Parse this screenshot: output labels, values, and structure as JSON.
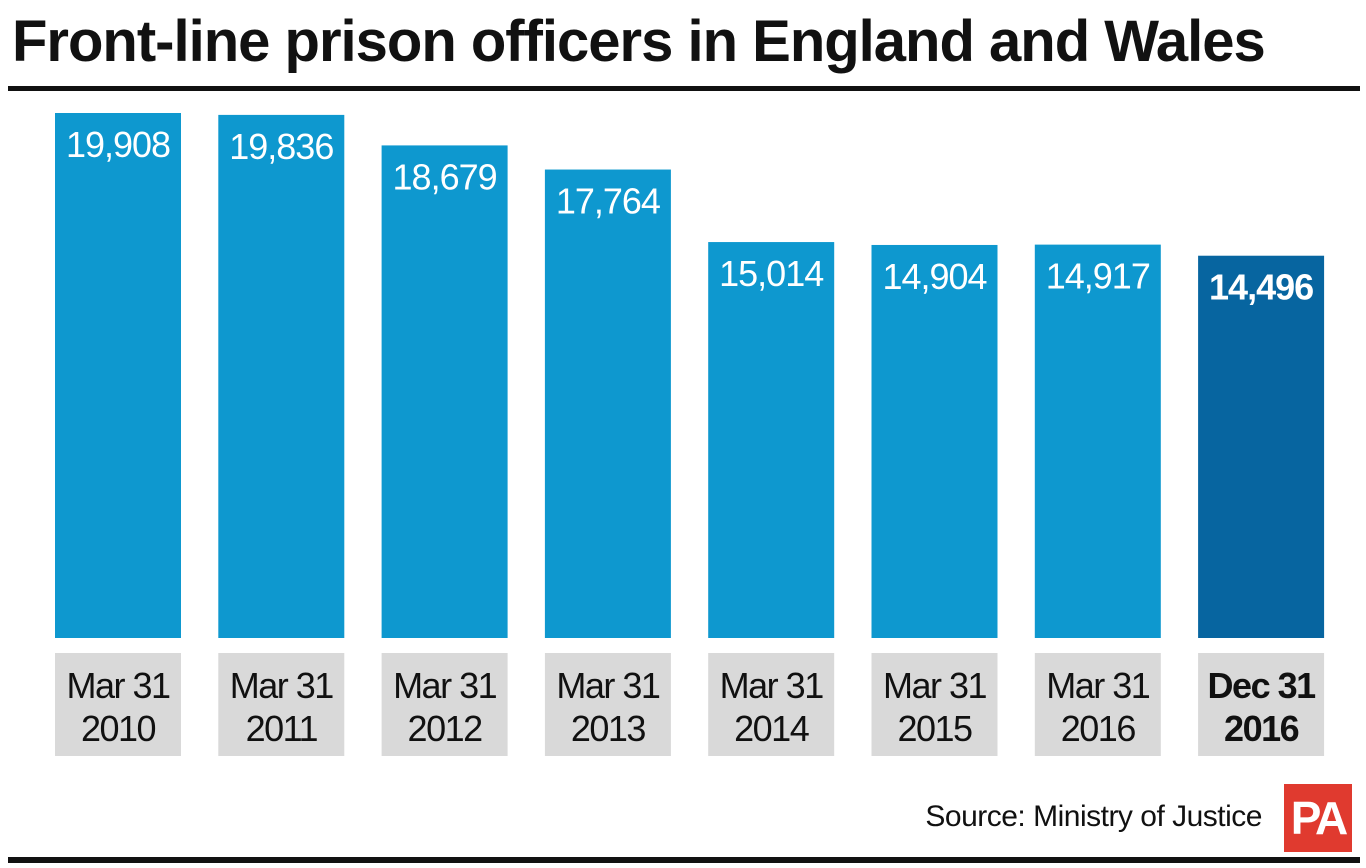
{
  "title": "Front-line prison officers in England and Wales",
  "source": "Source: Ministry of Justice",
  "logo_text": "PA",
  "colors": {
    "bar": "#0e98cf",
    "bar_highlight": "#0765a0",
    "label_box": "#d9d9d9",
    "text": "#111111",
    "logo": "#e03a2f"
  },
  "chart_data": {
    "type": "bar",
    "title": "Front-line prison officers in England and Wales",
    "categories": [
      [
        "Mar 31",
        "2010"
      ],
      [
        "Mar 31",
        "2011"
      ],
      [
        "Mar 31",
        "2012"
      ],
      [
        "Mar 31",
        "2013"
      ],
      [
        "Mar 31",
        "2014"
      ],
      [
        "Mar 31",
        "2015"
      ],
      [
        "Mar 31",
        "2016"
      ],
      [
        "Dec 31",
        "2016"
      ]
    ],
    "values": [
      19908,
      19836,
      18679,
      17764,
      15014,
      14904,
      14917,
      14496
    ],
    "value_labels": [
      "19,908",
      "19,836",
      "18,679",
      "17,764",
      "15,014",
      "14,904",
      "14,917",
      "14,496"
    ],
    "highlight_index": 7,
    "ylim": [
      0,
      19908
    ],
    "grid": false,
    "xlabel": "",
    "ylabel": ""
  }
}
